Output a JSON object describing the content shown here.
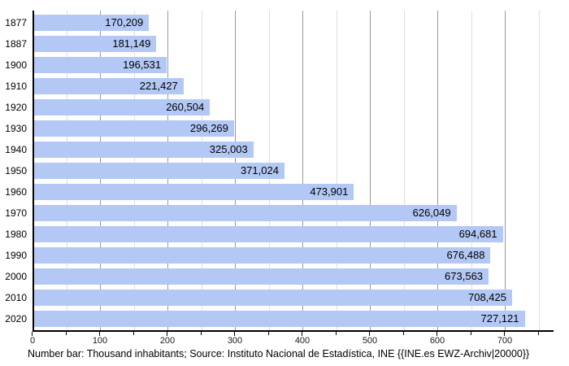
{
  "chart_data": {
    "type": "bar",
    "orientation": "horizontal",
    "title": "",
    "xlabel": "",
    "ylabel": "",
    "categories": [
      "1877",
      "1887",
      "1900",
      "1910",
      "1920",
      "1930",
      "1940",
      "1950",
      "1960",
      "1970",
      "1980",
      "1990",
      "2000",
      "2010",
      "2020"
    ],
    "values": [
      170209,
      181149,
      196531,
      221427,
      260504,
      296269,
      325003,
      371024,
      473901,
      626049,
      694681,
      676488,
      673563,
      708425,
      727121
    ],
    "value_labels": [
      "170,209",
      "181,149",
      "196,531",
      "221,427",
      "260,504",
      "296,269",
      "325,003",
      "371,024",
      "473,901",
      "626,049",
      "694,681",
      "676,488",
      "673,563",
      "708,425",
      "727,121"
    ],
    "unit": "thousand inhabitants",
    "xlim": [
      0,
      772
    ],
    "grid": true,
    "x_axis": {
      "major_ticks": [
        0,
        100,
        200,
        300,
        400,
        500,
        600,
        700
      ],
      "major_tick_labels": [
        "0",
        "100",
        "200",
        "300",
        "400",
        "500",
        "600",
        "700"
      ],
      "minor_ticks": [
        50,
        150,
        250,
        350,
        450,
        550,
        650,
        750
      ]
    },
    "caption": "Number bar: Thousand inhabitants; Source: Instituto Nacional de Estadística, INE {{INE.es EWZ-Archiv|20000}}",
    "colors": {
      "bar": "#b3c8f5",
      "major_grid": "#999999",
      "minor_grid": "#dedede",
      "axis": "#000000",
      "text": "#000000"
    }
  }
}
